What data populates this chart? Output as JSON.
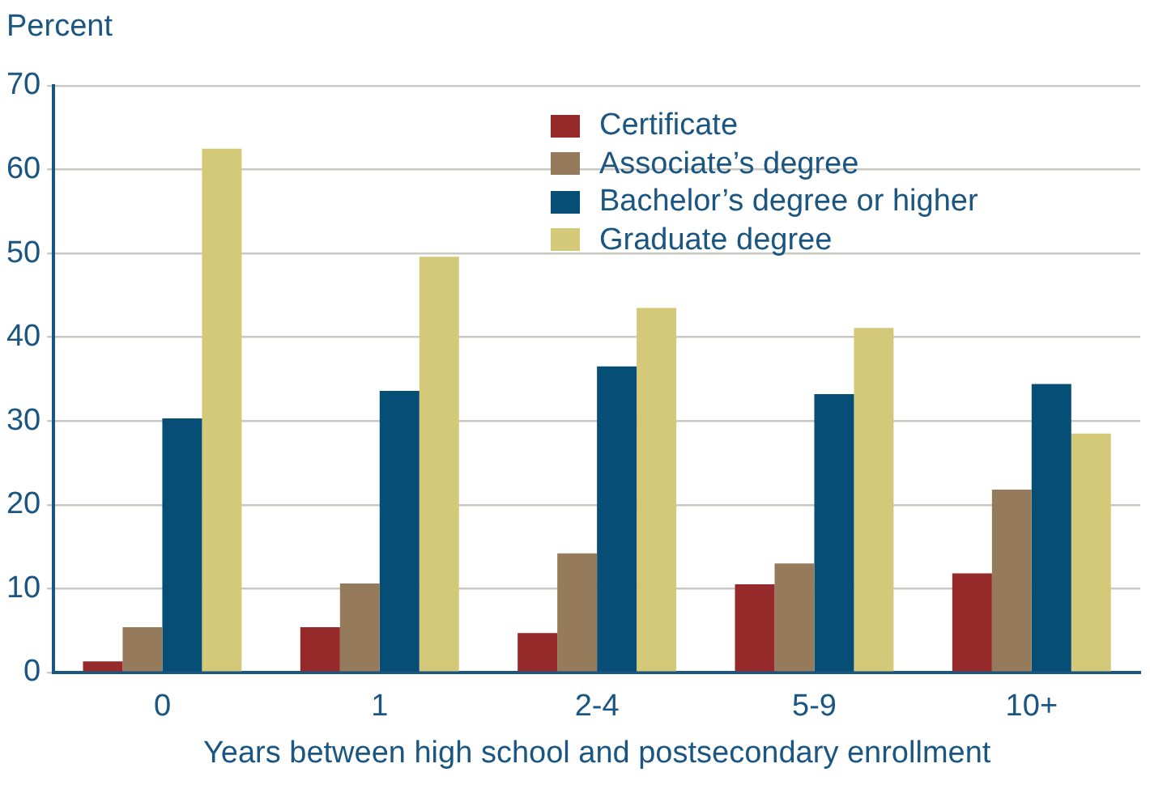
{
  "chart_data": {
    "type": "bar",
    "ylabel": "Percent",
    "xlabel": "Years between high school and postsecondary enrollment",
    "categories": [
      "0",
      "1",
      "2-4",
      "5-9",
      "10+"
    ],
    "series": [
      {
        "name": "Certificate",
        "color": "#962a2b",
        "values": [
          1.3,
          5.4,
          4.7,
          10.5,
          11.8
        ]
      },
      {
        "name": "Associate’s degree",
        "color": "#957b5c",
        "values": [
          5.4,
          10.6,
          14.2,
          13.0,
          21.8
        ]
      },
      {
        "name": "Bachelor’s degree or higher",
        "color": "#074e76",
        "values": [
          30.3,
          33.6,
          36.5,
          33.2,
          34.4
        ]
      },
      {
        "name": "Graduate degree",
        "color": "#d4c978",
        "values": [
          62.5,
          49.6,
          43.5,
          41.1,
          28.5
        ]
      }
    ],
    "ylim": [
      0,
      70
    ],
    "yticks": [
      0,
      10,
      20,
      30,
      40,
      50,
      60,
      70
    ],
    "grid": "y",
    "legend": "top right"
  }
}
